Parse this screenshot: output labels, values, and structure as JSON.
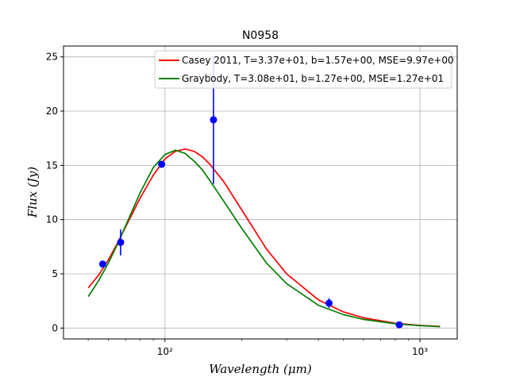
{
  "chart_data": {
    "type": "line",
    "title": "N0958",
    "xlabel": "Wavelength (μm)",
    "ylabel": "Flux (Jy)",
    "xscale": "log",
    "xlim": [
      40,
      1400
    ],
    "ylim": [
      -1,
      26
    ],
    "grid": true,
    "legend_position": "top-right",
    "x_ticks": [
      {
        "value": 100,
        "label": "10²"
      },
      {
        "value": 1000,
        "label": "10³"
      }
    ],
    "y_ticks": [
      0,
      5,
      10,
      15,
      20,
      25
    ],
    "observations": {
      "color": "#0000ff",
      "points": [
        {
          "x": 57,
          "y": 5.9,
          "yerr": 0.0
        },
        {
          "x": 67,
          "y": 7.9,
          "yerr": 1.2
        },
        {
          "x": 97,
          "y": 15.1,
          "yerr": 0.0
        },
        {
          "x": 155,
          "y": 19.2,
          "yerr": 5.9
        },
        {
          "x": 440,
          "y": 2.3,
          "yerr": 0.45
        },
        {
          "x": 830,
          "y": 0.3,
          "yerr": 0.0
        }
      ]
    },
    "series": [
      {
        "name": "Casey 2011, T=3.37e+01, b=1.57e+00, MSE=9.97e+00",
        "color": "#ff0000",
        "x": [
          50,
          55,
          60,
          65,
          70,
          75,
          80,
          90,
          100,
          110,
          120,
          130,
          140,
          150,
          170,
          200,
          250,
          300,
          400,
          500,
          600,
          800,
          1000,
          1200
        ],
        "y": [
          3.7,
          4.9,
          6.3,
          7.8,
          9.3,
          10.7,
          12.0,
          14.1,
          15.6,
          16.3,
          16.5,
          16.3,
          15.8,
          15.1,
          13.5,
          10.9,
          7.3,
          5.0,
          2.6,
          1.5,
          0.95,
          0.45,
          0.25,
          0.15
        ]
      },
      {
        "name": "Graybody, T=3.08e+01, b=1.27e+00, MSE=1.27e+01",
        "color": "#008000",
        "x": [
          50,
          55,
          60,
          65,
          70,
          75,
          80,
          90,
          100,
          110,
          120,
          130,
          140,
          150,
          170,
          200,
          250,
          300,
          400,
          500,
          600,
          800,
          1000,
          1200
        ],
        "y": [
          2.9,
          4.4,
          6.0,
          7.7,
          9.4,
          11.0,
          12.5,
          14.8,
          16.0,
          16.4,
          16.1,
          15.4,
          14.6,
          13.6,
          11.7,
          9.2,
          6.0,
          4.1,
          2.1,
          1.25,
          0.8,
          0.4,
          0.22,
          0.13
        ]
      }
    ]
  }
}
